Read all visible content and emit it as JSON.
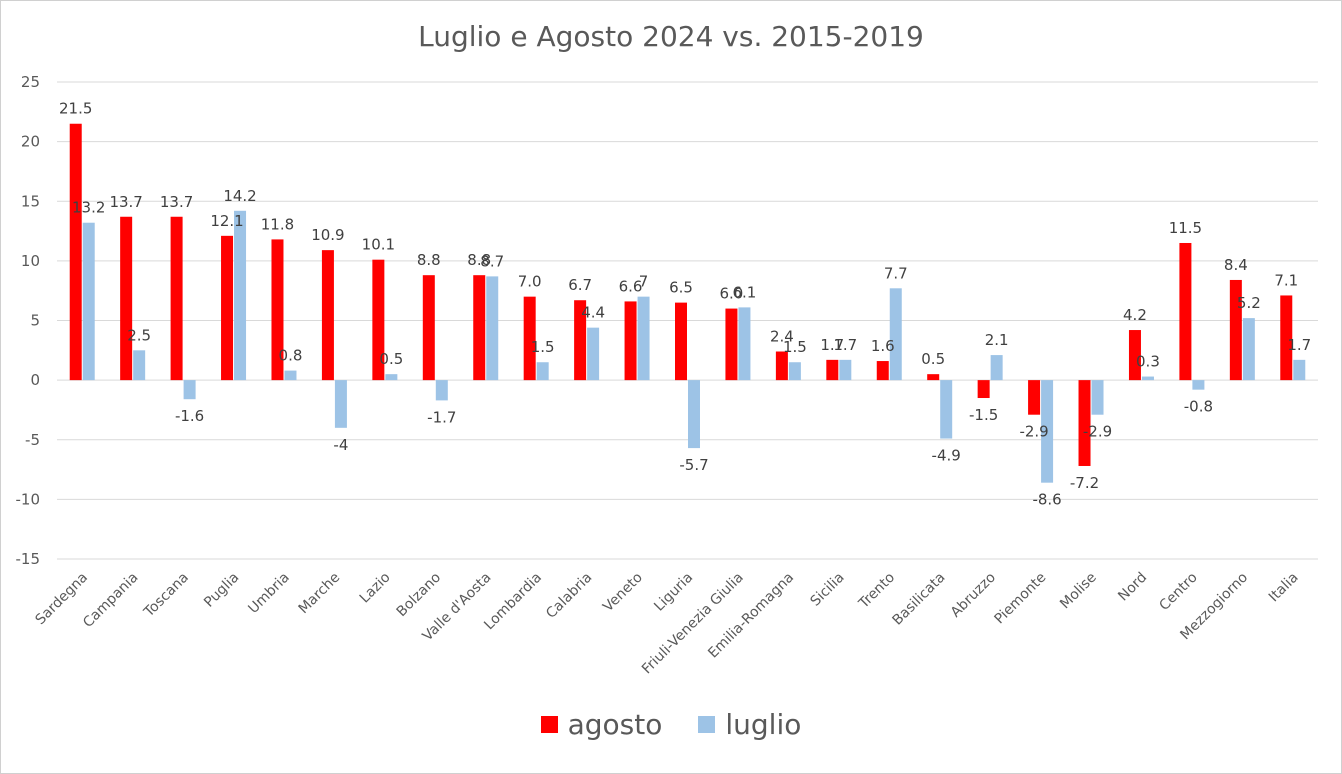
{
  "chart_data": {
    "type": "bar",
    "title": "Luglio e Agosto 2024 vs. 2015-2019",
    "categories": [
      "Sardegna",
      "Campania",
      "Toscana",
      "Puglia",
      "Umbria",
      "Marche",
      "Lazio",
      "Bolzano",
      "Valle d'Aosta",
      "Lombardia",
      "Calabria",
      "Veneto",
      "Liguria",
      "Friuli-Venezia Giulia",
      "Emilia-Romagna",
      "Sicilia",
      "Trento",
      "Basilicata",
      "Abruzzo",
      "Piemonte",
      "Molise",
      "Nord",
      "Centro",
      "Mezzogiorno",
      "Italia"
    ],
    "series": [
      {
        "name": "agosto",
        "color": "#ff0000",
        "values": [
          21.5,
          13.7,
          13.7,
          12.1,
          11.8,
          10.9,
          10.1,
          8.8,
          8.8,
          7.0,
          6.7,
          6.6,
          6.5,
          6.0,
          2.4,
          1.7,
          1.6,
          0.5,
          -1.5,
          -2.9,
          -7.2,
          4.2,
          11.5,
          8.4,
          7.1
        ],
        "labels": [
          "21.5",
          "13.7",
          "13.7",
          "12.1",
          "11.8",
          "10.9",
          "10.1",
          "8.8",
          "8.8",
          "7.0",
          "6.7",
          "6.6",
          "6.5",
          "6.0",
          "2.4",
          "1.7",
          "1.6",
          "0.5",
          "-1.5",
          "-2.9",
          "-7.2",
          "4.2",
          "11.5",
          "8.4",
          "7.1"
        ]
      },
      {
        "name": "luglio",
        "color": "#9dc3e6",
        "values": [
          13.2,
          2.5,
          -1.6,
          14.2,
          0.8,
          -4,
          0.5,
          -1.7,
          8.7,
          1.5,
          4.4,
          7,
          -5.7,
          6.1,
          1.5,
          1.7,
          7.7,
          -4.9,
          2.1,
          -8.6,
          -2.9,
          0.3,
          -0.8,
          5.2,
          1.7
        ],
        "labels": [
          "13.2",
          "2.5",
          "-1.6",
          "14.2",
          "0.8",
          "-4",
          "0.5",
          "-1.7",
          "8.7",
          "1.5",
          "4.4",
          "7",
          "-5.7",
          "6.1",
          "1.5",
          "1.7",
          "7.7",
          "-4.9",
          "2.1",
          "-8.6",
          "-2.9",
          "0.3",
          "-0.8",
          "5.2",
          "1.7"
        ]
      }
    ],
    "ylim": [
      -15,
      25
    ],
    "yticks": [
      -15,
      -10,
      -5,
      0,
      5,
      10,
      15,
      20,
      25
    ],
    "grid": true,
    "legend": "bottom"
  }
}
